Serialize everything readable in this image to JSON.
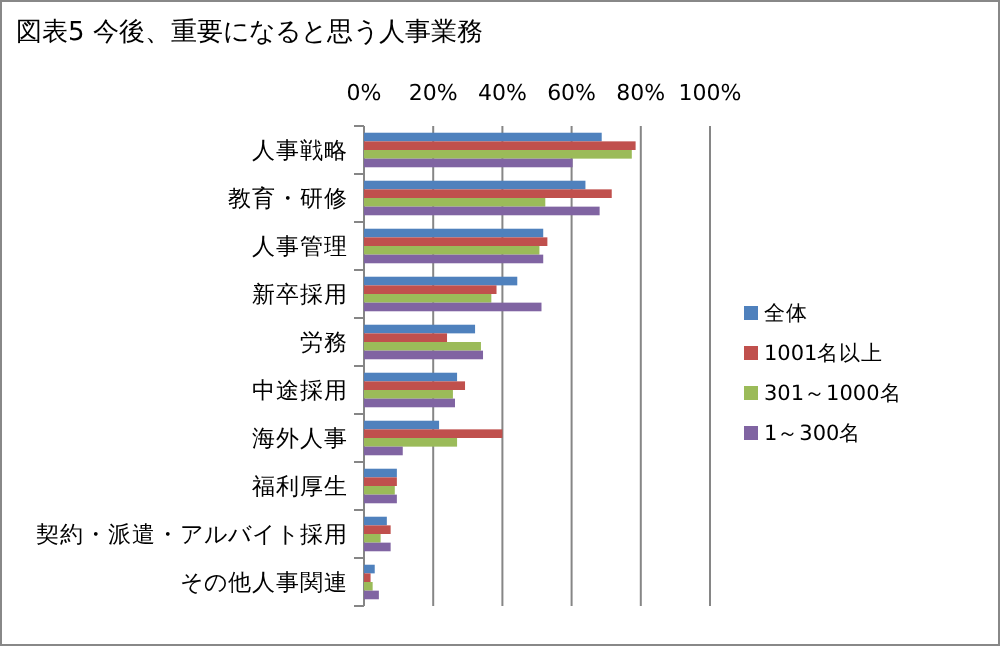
{
  "chart_data": {
    "type": "bar",
    "orientation": "horizontal",
    "title": "図表5 今後、重要になると思う人事業務",
    "categories": [
      "人事戦略",
      "教育・研修",
      "人事管理",
      "新卒採用",
      "労務",
      "中途採用",
      "海外人事",
      "福利厚生",
      "契約・派遣・アルバイト採用",
      "その他人事関連"
    ],
    "series": [
      {
        "name": "全体",
        "color": "#4f81bd",
        "values": [
          68.7,
          64.0,
          51.8,
          44.3,
          32.1,
          26.9,
          21.7,
          9.5,
          6.6,
          3.1
        ]
      },
      {
        "name": "1001名以上",
        "color": "#c0504d",
        "values": [
          78.5,
          71.6,
          53.0,
          38.3,
          24.0,
          29.2,
          40.0,
          9.5,
          7.7,
          1.9
        ]
      },
      {
        "name": "301～1000名",
        "color": "#9bbb59",
        "values": [
          77.4,
          52.4,
          50.7,
          36.8,
          33.8,
          25.7,
          26.9,
          8.9,
          4.8,
          2.5
        ]
      },
      {
        "name": "1～300名",
        "color": "#8064a2",
        "values": [
          60.3,
          68.1,
          51.8,
          51.3,
          34.4,
          26.3,
          11.2,
          9.5,
          7.7,
          4.3
        ]
      }
    ],
    "xlim": [
      0,
      100
    ],
    "xticks": [
      {
        "value": 0,
        "label": "0%"
      },
      {
        "value": 20,
        "label": "20%"
      },
      {
        "value": 40,
        "label": "40%"
      },
      {
        "value": 60,
        "label": "60%"
      },
      {
        "value": 80,
        "label": "80%"
      },
      {
        "value": 100,
        "label": "100%"
      }
    ],
    "grid": "x",
    "legend": "right"
  }
}
